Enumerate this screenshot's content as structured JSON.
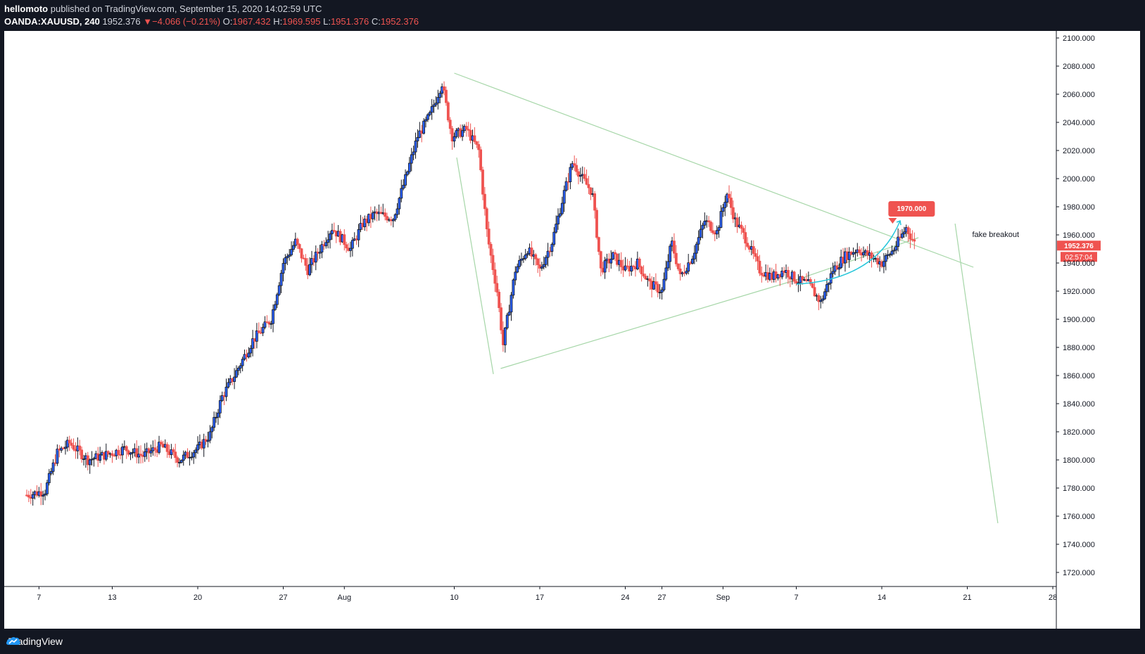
{
  "header": {
    "author": "hellomoto",
    "published_text": "published on TradingView.com, September 15, 2020 14:02:59 UTC",
    "symbol": "OANDA:XAUUSD, 240",
    "last": "1952.376",
    "change": "−4.066 (−0.21%)",
    "o_label": "O:",
    "o": "1967.432",
    "h_label": "H:",
    "h": "1969.595",
    "l_label": "L:",
    "l": "1951.376",
    "c_label": "C:",
    "c": "1952.376"
  },
  "footer": {
    "brand": "TradingView"
  },
  "colors": {
    "up": "#131722",
    "down": "#ef5350",
    "trendline": "#a5d6a7",
    "arrow": "#26c6da",
    "badge": "#ef5350"
  },
  "chart_data": {
    "type": "candlestick",
    "ylim": [
      1710,
      2105
    ],
    "yticks": [
      "1720.000",
      "1740.000",
      "1760.000",
      "1780.000",
      "1800.000",
      "1820.000",
      "1840.000",
      "1860.000",
      "1880.000",
      "1900.000",
      "1920.000",
      "1940.000",
      "1960.000",
      "1980.000",
      "2000.000",
      "2020.000",
      "2040.000",
      "2060.000",
      "2080.000",
      "2100.000"
    ],
    "ytick_values": [
      1720,
      1740,
      1760,
      1780,
      1800,
      1820,
      1840,
      1860,
      1880,
      1900,
      1920,
      1940,
      1960,
      1980,
      2000,
      2020,
      2040,
      2060,
      2080,
      2100
    ],
    "x_range_days": [
      0,
      56
    ],
    "xticks": [
      {
        "label": "7",
        "day": 1
      },
      {
        "label": "13",
        "day": 7
      },
      {
        "label": "20",
        "day": 14
      },
      {
        "label": "27",
        "day": 21
      },
      {
        "label": "Aug",
        "day": 26
      },
      {
        "label": "10",
        "day": 35
      },
      {
        "label": "17",
        "day": 42
      },
      {
        "label": "24",
        "day": 49
      },
      {
        "label": "27",
        "day": 52
      },
      {
        "label": "Sep",
        "day": 57
      },
      {
        "label": "7",
        "day": 63
      },
      {
        "label": "14",
        "day": 70
      },
      {
        "label": "21",
        "day": 77
      },
      {
        "label": "28",
        "day": 84
      }
    ],
    "x_map": {
      "first_day": 0,
      "last_day": 84
    },
    "anchors": [
      {
        "day": 0,
        "price": 1775
      },
      {
        "day": 1.5,
        "price": 1778
      },
      {
        "day": 2.5,
        "price": 1805
      },
      {
        "day": 3.5,
        "price": 1812
      },
      {
        "day": 5,
        "price": 1800
      },
      {
        "day": 7,
        "price": 1805
      },
      {
        "day": 8,
        "price": 1808
      },
      {
        "day": 9.5,
        "price": 1803
      },
      {
        "day": 11,
        "price": 1810
      },
      {
        "day": 12.5,
        "price": 1800
      },
      {
        "day": 14,
        "price": 1808
      },
      {
        "day": 15,
        "price": 1818
      },
      {
        "day": 16,
        "price": 1845
      },
      {
        "day": 17,
        "price": 1860
      },
      {
        "day": 18.5,
        "price": 1885
      },
      {
        "day": 20,
        "price": 1900
      },
      {
        "day": 21,
        "price": 1940
      },
      {
        "day": 22,
        "price": 1955
      },
      {
        "day": 23,
        "price": 1935
      },
      {
        "day": 25,
        "price": 1965
      },
      {
        "day": 26.5,
        "price": 1950
      },
      {
        "day": 27.5,
        "price": 1968
      },
      {
        "day": 28.5,
        "price": 1975
      },
      {
        "day": 30,
        "price": 1972
      },
      {
        "day": 31,
        "price": 2000
      },
      {
        "day": 32,
        "price": 2030
      },
      {
        "day": 33,
        "price": 2045
      },
      {
        "day": 34,
        "price": 2068
      },
      {
        "day": 34.8,
        "price": 2030
      },
      {
        "day": 36,
        "price": 2035
      },
      {
        "day": 37,
        "price": 2020
      },
      {
        "day": 37.7,
        "price": 1960
      },
      {
        "day": 38.5,
        "price": 1920
      },
      {
        "day": 39,
        "price": 1882
      },
      {
        "day": 40,
        "price": 1935
      },
      {
        "day": 41,
        "price": 1950
      },
      {
        "day": 42,
        "price": 1935
      },
      {
        "day": 43,
        "price": 1955
      },
      {
        "day": 44,
        "price": 1990
      },
      {
        "day": 44.7,
        "price": 2012
      },
      {
        "day": 45.5,
        "price": 2000
      },
      {
        "day": 46.3,
        "price": 1990
      },
      {
        "day": 47,
        "price": 1935
      },
      {
        "day": 48,
        "price": 1945
      },
      {
        "day": 49,
        "price": 1935
      },
      {
        "day": 50,
        "price": 1940
      },
      {
        "day": 51,
        "price": 1925
      },
      {
        "day": 52,
        "price": 1920
      },
      {
        "day": 52.8,
        "price": 1955
      },
      {
        "day": 53.5,
        "price": 1930
      },
      {
        "day": 54.5,
        "price": 1945
      },
      {
        "day": 55.5,
        "price": 1970
      },
      {
        "day": 56.5,
        "price": 1962
      },
      {
        "day": 57.3,
        "price": 1990
      },
      {
        "day": 58,
        "price": 1970
      },
      {
        "day": 59,
        "price": 1955
      },
      {
        "day": 60,
        "price": 1935
      },
      {
        "day": 61,
        "price": 1930
      },
      {
        "day": 62,
        "price": 1935
      },
      {
        "day": 63,
        "price": 1928
      },
      {
        "day": 64,
        "price": 1925
      },
      {
        "day": 65,
        "price": 1912
      },
      {
        "day": 66,
        "price": 1935
      },
      {
        "day": 67,
        "price": 1945
      },
      {
        "day": 68,
        "price": 1950
      },
      {
        "day": 69,
        "price": 1945
      },
      {
        "day": 70,
        "price": 1940
      },
      {
        "day": 71,
        "price": 1950
      },
      {
        "day": 72,
        "price": 1965
      },
      {
        "day": 72.8,
        "price": 1952
      }
    ],
    "annotations": {
      "badge_label": "1970.000",
      "badge_price": 1970,
      "text": "fake breakout",
      "last_price_label": "1952.376",
      "countdown_label": "02:57:04"
    },
    "trendlines": [
      {
        "from": {
          "day": 35,
          "price": 2075
        },
        "to": {
          "day": 77.5,
          "price": 1937
        }
      },
      {
        "from": {
          "day": 38.8,
          "price": 1865
        },
        "to": {
          "day": 63,
          "price": 1928
        }
      },
      {
        "from": {
          "day": 63,
          "price": 1928
        },
        "to": {
          "day": 73,
          "price": 1958
        }
      },
      {
        "from": {
          "day": 35.2,
          "price": 2015
        },
        "to": {
          "day": 38.2,
          "price": 1861
        }
      },
      {
        "from": {
          "day": 76,
          "price": 1968
        },
        "to": {
          "day": 79.5,
          "price": 1755
        }
      }
    ]
  }
}
